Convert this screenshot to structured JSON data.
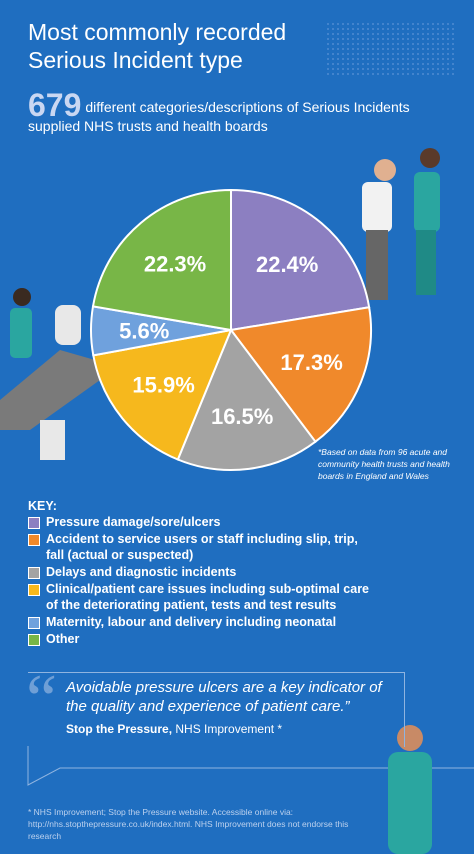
{
  "title": "Most commonly recorded Serious Incident type",
  "intro_number": "679",
  "intro_text": "different categories/descriptions of Serious Incidents supplied NHS trusts and health boards",
  "chart_data": {
    "type": "pie",
    "categories": [
      "Pressure damage/sore/ulcers",
      "Accident to service users or staff including slip, trip, fall (actual or suspected)",
      "Delays and diagnostic incidents",
      "Clinical/patient care issues including sub-optimal care of the deteriorating patient, tests and test results",
      "Maternity, labour and delivery including neonatal",
      "Other"
    ],
    "values": [
      22.4,
      17.3,
      16.5,
      15.9,
      5.6,
      22.3
    ],
    "value_labels": [
      "22.4%",
      "17.3%",
      "16.5%",
      "15.9%",
      "5.6%",
      "22.3%"
    ],
    "colors": [
      "#8c7fc1",
      "#f0892b",
      "#a3a3a3",
      "#f6b81d",
      "#6fa1dd",
      "#78b647"
    ]
  },
  "footnote": "*Based on data from 96 acute and community health trusts and health boards in England and Wales",
  "key_title": "KEY:",
  "quote": "Avoidable pressure ulcers are a key indicator of the quality and experience of patient care.”",
  "attribution_bold": "Stop the Pressure,",
  "attribution": "NHS Improvement *",
  "source": "* NHS Improvement; Stop the Pressure website. Accessible online via: http://nhs.stopthepressure.co.uk/index.html. NHS Improvement does not endorse this research"
}
